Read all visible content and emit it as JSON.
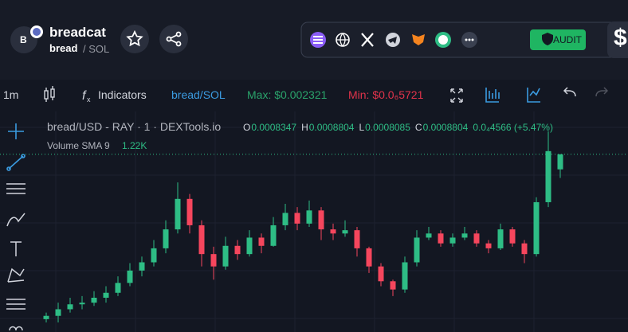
{
  "header": {
    "avatar_letter": "B",
    "name": "breadcat",
    "symbol": "bread",
    "quote": "/ SOL",
    "audit_label": "AUDIT",
    "cut_text": "$"
  },
  "toolbar": {
    "interval": "1m",
    "indicators": "Indicators",
    "pair": "bread/SOL",
    "max": "Max: $0.002321",
    "min": "Min: $0.0₆5721"
  },
  "chart_data": {
    "type": "candlestick",
    "title": "bread/USD - RAY · 1 · DEXTools.io",
    "ohlc": [
      {
        "label": "O",
        "value": "0.0008347"
      },
      {
        "label": "H",
        "value": "0.0008804"
      },
      {
        "label": "L",
        "value": "0.0008085"
      },
      {
        "label": "C",
        "value": "0.0008804"
      }
    ],
    "change": "0.0₄4566 (+5.47%)",
    "volume_label": "Volume SMA 9",
    "volume_value": "1.22K",
    "up_color": "#2ebd85",
    "down_color": "#f6465d",
    "candles": [
      [
        0.00038,
        0.0004,
        0.00037,
        0.00039
      ],
      [
        0.00039,
        0.00043,
        0.00037,
        0.00041
      ],
      [
        0.00041,
        0.000445,
        0.0004,
        0.000425
      ],
      [
        0.000425,
        0.00045,
        0.00041,
        0.00043
      ],
      [
        0.00043,
        0.000465,
        0.00042,
        0.000445
      ],
      [
        0.000445,
        0.00048,
        0.00043,
        0.00046
      ],
      [
        0.00046,
        0.00051,
        0.00045,
        0.00049
      ],
      [
        0.00049,
        0.00055,
        0.00048,
        0.0005275
      ],
      [
        0.0005275,
        0.00057,
        0.00051,
        0.0005525
      ],
      [
        0.0005525,
        0.00062,
        0.00054,
        0.000595
      ],
      [
        0.000595,
        0.00068,
        0.00058,
        0.0006525
      ],
      [
        0.0006525,
        0.000795,
        0.00064,
        0.000745
      ],
      [
        0.000745,
        0.00076,
        0.00064,
        0.000665
      ],
      [
        0.000665,
        0.00068,
        0.00054,
        0.0005775
      ],
      [
        0.0005775,
        0.0006,
        0.0005,
        0.00054
      ],
      [
        0.00054,
        0.00063,
        0.00053,
        0.0006025
      ],
      [
        0.0006025,
        0.00062,
        0.00056,
        0.0005775
      ],
      [
        0.0005775,
        0.00065,
        0.00057,
        0.0006275
      ],
      [
        0.0006275,
        0.00064,
        0.00058,
        0.0006025
      ],
      [
        0.0006025,
        0.00069,
        0.0006,
        0.000665
      ],
      [
        0.000665,
        0.00073,
        0.00065,
        0.0007025
      ],
      [
        0.0007025,
        0.00072,
        0.00065,
        0.00067
      ],
      [
        0.00067,
        0.00074,
        0.00066,
        0.00071
      ],
      [
        0.00071,
        0.00072,
        0.00062,
        0.0006525
      ],
      [
        0.0006525,
        0.00067,
        0.00062,
        0.00064
      ],
      [
        0.00064,
        0.00068,
        0.00063,
        0.00065
      ],
      [
        0.00065,
        0.00066,
        0.00057,
        0.000595
      ],
      [
        0.000595,
        0.0006,
        0.00052,
        0.00054
      ],
      [
        0.00054,
        0.00055,
        0.00048,
        0.000495
      ],
      [
        0.000495,
        0.0005,
        0.00045,
        0.00047
      ],
      [
        0.00047,
        0.00057,
        0.00046,
        0.0005525
      ],
      [
        0.0005525,
        0.00065,
        0.00054,
        0.0006275
      ],
      [
        0.0006275,
        0.00066,
        0.00062,
        0.00064
      ],
      [
        0.00064,
        0.00065,
        0.0006,
        0.00061
      ],
      [
        0.00061,
        0.00064,
        0.0006,
        0.0006275
      ],
      [
        0.0006275,
        0.00066,
        0.00062,
        0.00064
      ],
      [
        0.00064,
        0.00065,
        0.0006,
        0.00061
      ],
      [
        0.00061,
        0.00062,
        0.00058,
        0.000595
      ],
      [
        0.000595,
        0.00067,
        0.00059,
        0.0006525
      ],
      [
        0.0006525,
        0.00066,
        0.0006,
        0.00061
      ],
      [
        0.00061,
        0.00062,
        0.00055,
        0.0005775
      ],
      [
        0.0005775,
        0.00075,
        0.00057,
        0.000735
      ],
      [
        0.000735,
        0.00095,
        0.00072,
        0.00089
      ],
      [
        0.0008347,
        0.0008804,
        0.0008085,
        0.0008804
      ]
    ]
  }
}
